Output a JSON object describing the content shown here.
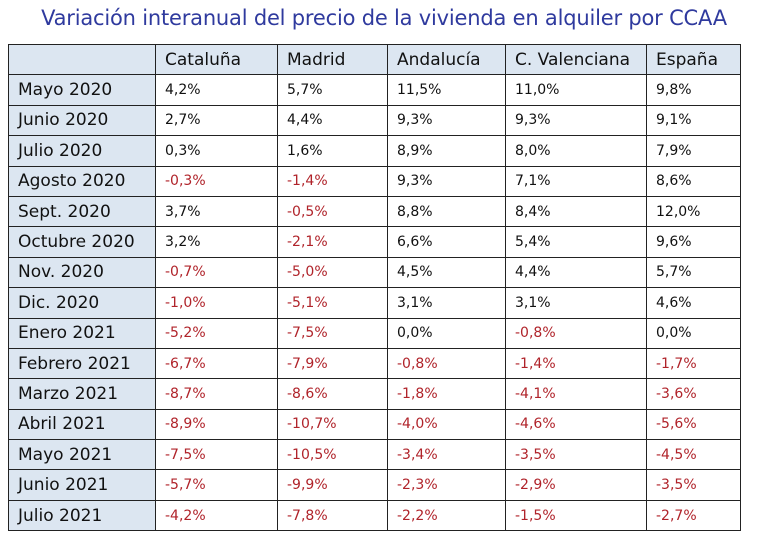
{
  "title": "Variación interanual del precio de la vivienda en alquiler por CCAA",
  "colors": {
    "title": "#2f3a9e",
    "header_bg": "#dce6f1",
    "negative": "#b0232a"
  },
  "table": {
    "headers": [
      "",
      "Cataluña",
      "Madrid",
      "Andalucía",
      "C. Valenciana",
      "España"
    ],
    "rows": [
      {
        "label": "Mayo 2020",
        "values": [
          "4,2%",
          "5,7%",
          "11,5%",
          "11,0%",
          "9,8%"
        ]
      },
      {
        "label": "Junio 2020",
        "values": [
          "2,7%",
          "4,4%",
          "9,3%",
          "9,3%",
          "9,1%"
        ]
      },
      {
        "label": "Julio 2020",
        "values": [
          "0,3%",
          "1,6%",
          "8,9%",
          "8,0%",
          "7,9%"
        ]
      },
      {
        "label": "Agosto 2020",
        "values": [
          "-0,3%",
          "-1,4%",
          "9,3%",
          "7,1%",
          "8,6%"
        ]
      },
      {
        "label": "Sept. 2020",
        "values": [
          "3,7%",
          "-0,5%",
          "8,8%",
          "8,4%",
          "12,0%"
        ]
      },
      {
        "label": "Octubre 2020",
        "values": [
          "3,2%",
          "-2,1%",
          "6,6%",
          "5,4%",
          "9,6%"
        ]
      },
      {
        "label": "Nov. 2020",
        "values": [
          "-0,7%",
          "-5,0%",
          "4,5%",
          "4,4%",
          "5,7%"
        ]
      },
      {
        "label": "Dic. 2020",
        "values": [
          "-1,0%",
          "-5,1%",
          "3,1%",
          "3,1%",
          "4,6%"
        ]
      },
      {
        "label": "Enero 2021",
        "values": [
          "-5,2%",
          "-7,5%",
          "0,0%",
          "-0,8%",
          "0,0%"
        ]
      },
      {
        "label": "Febrero 2021",
        "values": [
          "-6,7%",
          "-7,9%",
          "-0,8%",
          "-1,4%",
          "-1,7%"
        ]
      },
      {
        "label": "Marzo 2021",
        "values": [
          "-8,7%",
          "-8,6%",
          "-1,8%",
          "-4,1%",
          "-3,6%"
        ]
      },
      {
        "label": "Abril 2021",
        "values": [
          "-8,9%",
          "-10,7%",
          "-4,0%",
          "-4,6%",
          "-5,6%"
        ]
      },
      {
        "label": "Mayo 2021",
        "values": [
          "-7,5%",
          "-10,5%",
          "-3,4%",
          "-3,5%",
          "-4,5%"
        ]
      },
      {
        "label": "Junio 2021",
        "values": [
          "-5,7%",
          "-9,9%",
          "-2,3%",
          "-2,9%",
          "-3,5%"
        ]
      },
      {
        "label": "Julio 2021",
        "values": [
          "-4,2%",
          "-7,8%",
          "-2,2%",
          "-1,5%",
          "-2,7%"
        ]
      }
    ]
  }
}
